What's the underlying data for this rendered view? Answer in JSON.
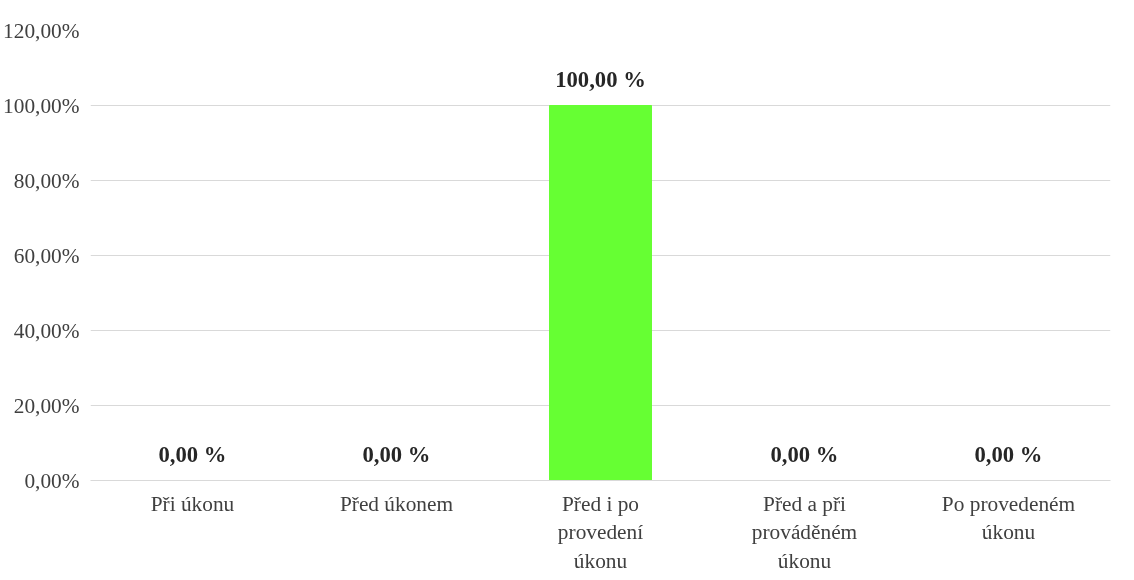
{
  "chart_data": {
    "type": "bar",
    "categories": [
      "Při úkonu",
      "Před úkonem",
      "Před i po provedení úkonu",
      "Před a při prováděném úkonu",
      "Po provedeném úkonu"
    ],
    "values": [
      0,
      0,
      100,
      0,
      0
    ],
    "value_labels": [
      "0,00 %",
      "0,00 %",
      "100,00 %",
      "0,00 %",
      "0,00 %"
    ],
    "color": "#66ff33",
    "ylim": [
      0,
      120
    ],
    "yticks": [
      {
        "value": 0,
        "label": "0,00%"
      },
      {
        "value": 20,
        "label": "20,00%"
      },
      {
        "value": 40,
        "label": "40,00%"
      },
      {
        "value": 60,
        "label": "60,00%"
      },
      {
        "value": 80,
        "label": "80,00%"
      },
      {
        "value": 100,
        "label": "100,00%"
      },
      {
        "value": 120,
        "label": "120,00%"
      }
    ],
    "grid": "y"
  }
}
